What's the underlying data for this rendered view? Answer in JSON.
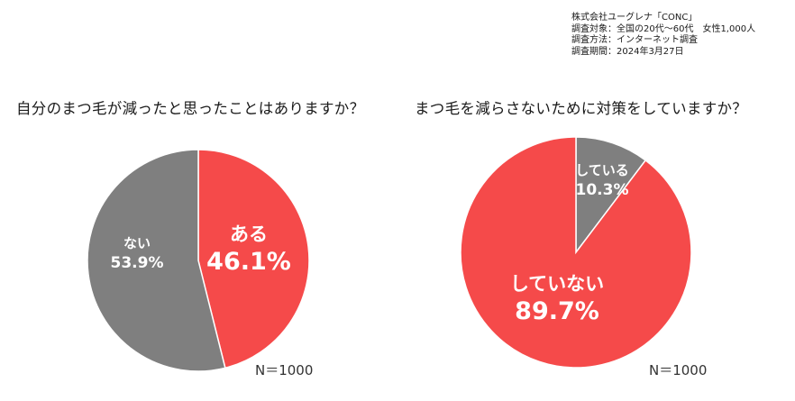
{
  "survey_info": [
    "株式会社ユーグレナ「CONC」",
    "調査対象：全国の20代～60代　女性1,000人",
    "調査方法：インターネット調査",
    "調査期間：2024年3月27日"
  ],
  "chart_data": [
    {
      "type": "pie",
      "title": "自分のまつ毛が減ったと思ったことはありますか？",
      "slices": [
        {
          "label": "ある",
          "value": 46.1,
          "value_text": "46.1%",
          "color": "#f54a4a"
        },
        {
          "label": "ない",
          "value": 53.9,
          "value_text": "53.9%",
          "color": "#7f7f7f"
        }
      ],
      "n_label": "N＝1000"
    },
    {
      "type": "pie",
      "title": "まつ毛を減らさないために対策をしていますか？",
      "slices": [
        {
          "label": "している",
          "value": 10.3,
          "value_text": "10.3%",
          "color": "#7f7f7f"
        },
        {
          "label": "していない",
          "value": 89.7,
          "value_text": "89.7%",
          "color": "#f54a4a"
        }
      ],
      "n_label": "N＝1000"
    }
  ]
}
